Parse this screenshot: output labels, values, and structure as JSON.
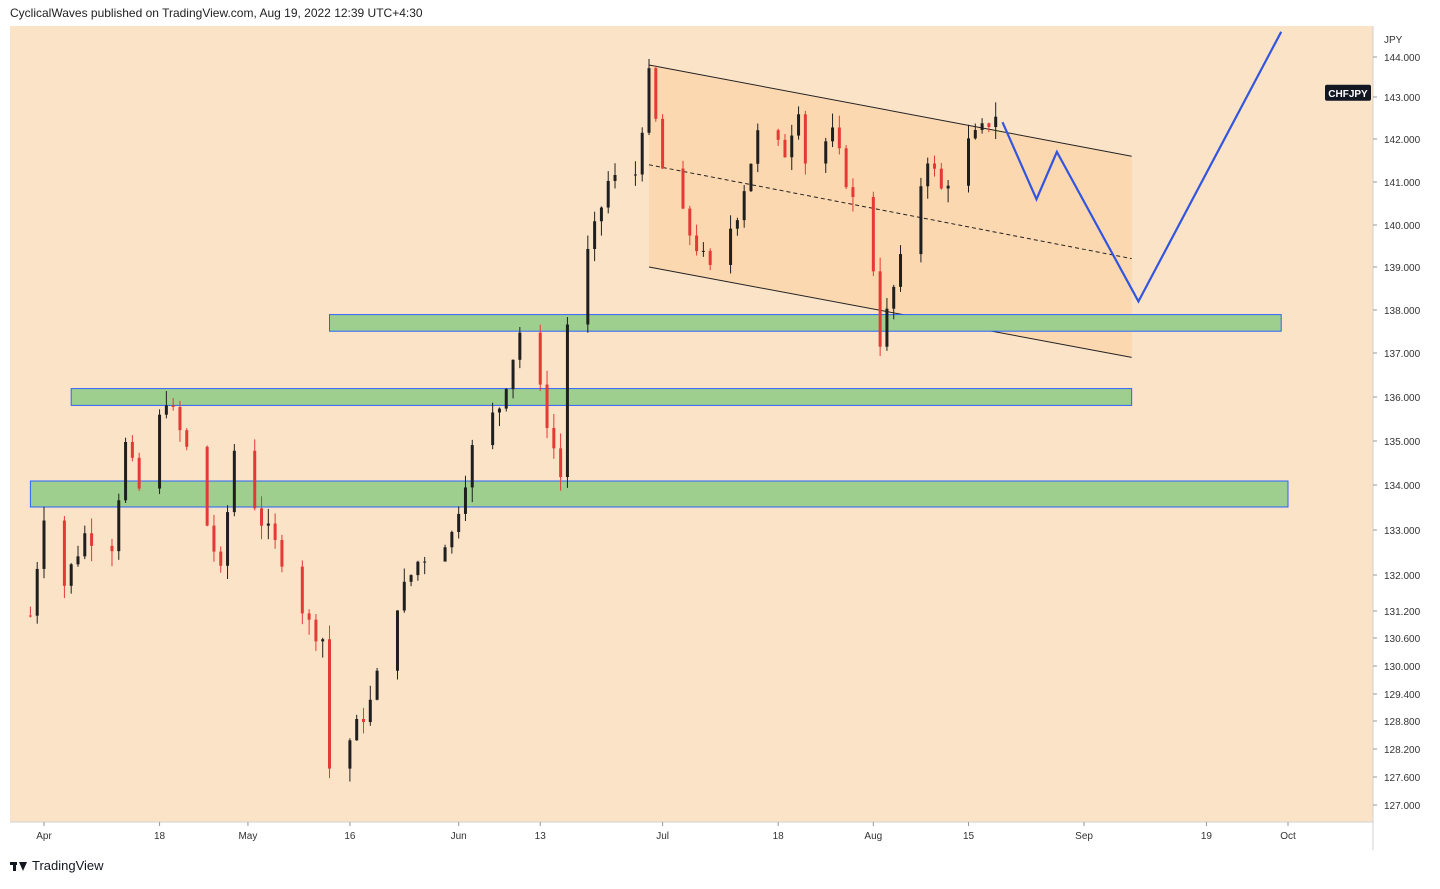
{
  "header": {
    "publisher_text": "CyclicalWaves published on TradingView.com, Aug 19, 2022 12:39 UTC+4:30"
  },
  "footer": {
    "brand": "TradingView",
    "logo_icon": "tradingview-logo-icon"
  },
  "colors": {
    "background": "#fbe3c8",
    "channel_fill": "#fdcf9c",
    "zone_fill": "#9fcf8f",
    "zone_border": "#2962ff",
    "projection": "#3155e0",
    "up_candle": "#1f1f1f",
    "down_candle": "#e53935"
  },
  "chart_data": {
    "type": "candlestick",
    "symbol": "CHFJPY",
    "currency": "JPY",
    "y_axis_labels": [
      "144.000",
      "143.000",
      "142.000",
      "141.000",
      "140.000",
      "139.000",
      "138.000",
      "137.000",
      "136.000",
      "135.000",
      "134.000",
      "133.000",
      "132.000",
      "131.200",
      "130.600",
      "130.000",
      "129.400",
      "128.800",
      "128.200",
      "127.600",
      "127.000"
    ],
    "x_axis_labels": [
      "Apr",
      "18",
      "May",
      "16",
      "Jun",
      "13",
      "Jul",
      "18",
      "Aug",
      "15",
      "Sep",
      "19",
      "Oct"
    ],
    "price_path": [
      [
        "Mar 30",
        131.1
      ],
      [
        "Apr 1",
        133.4
      ],
      [
        "Apr 4",
        131.8
      ],
      [
        "Apr 7",
        132.9
      ],
      [
        "Apr 11",
        132.7
      ],
      [
        "Apr 13",
        134.9
      ],
      [
        "Apr 15",
        133.9
      ],
      [
        "Apr 19",
        136.0
      ],
      [
        "Apr 22",
        134.8
      ],
      [
        "Apr 27",
        132.0
      ],
      [
        "Apr 29",
        134.8
      ],
      [
        "May 3",
        133.2
      ],
      [
        "May 6",
        132.4
      ],
      [
        "May 10",
        130.9
      ],
      [
        "May 12",
        130.6
      ],
      [
        "May 13",
        127.8
      ],
      [
        "May 16",
        128.4
      ],
      [
        "May 19",
        129.2
      ],
      [
        "May 23",
        131.4
      ],
      [
        "May 26",
        132.3
      ],
      [
        "May 31",
        132.9
      ],
      [
        "Jun 3",
        134.8
      ],
      [
        "Jun 7",
        135.8
      ],
      [
        "Jun 10",
        137.5
      ],
      [
        "Jun 13",
        136.1
      ],
      [
        "Jun 16",
        134.2
      ],
      [
        "Jun 17",
        137.7
      ],
      [
        "Jun 20",
        139.3
      ],
      [
        "Jun 23",
        141.0
      ],
      [
        "Jun 27",
        141.2
      ],
      [
        "Jun 29",
        143.5
      ],
      [
        "Jul 1",
        141.3
      ],
      [
        "Jul 5",
        139.8
      ],
      [
        "Jul 8",
        138.9
      ],
      [
        "Jul 12",
        140.3
      ],
      [
        "Jul 15",
        142.1
      ],
      [
        "Jul 19",
        141.7
      ],
      [
        "Jul 21",
        142.8
      ],
      [
        "Jul 22",
        141.5
      ],
      [
        "Jul 26",
        142.1
      ],
      [
        "Aug 1",
        139.0
      ],
      [
        "Aug 2",
        137.3
      ],
      [
        "Aug 5",
        139.1
      ],
      [
        "Aug 9",
        141.6
      ],
      [
        "Aug 11",
        140.8
      ],
      [
        "Aug 15",
        141.9
      ],
      [
        "Aug 17",
        142.2
      ],
      [
        "Aug 19",
        142.6
      ]
    ],
    "channel": {
      "upper": [
        [
          "Jun 29",
          143.8
        ],
        [
          "Sep 8",
          141.6
        ]
      ],
      "lower": [
        [
          "Jun 29",
          139.0
        ],
        [
          "Sep 8",
          136.9
        ]
      ],
      "mid": [
        [
          "Jun 29",
          141.4
        ],
        [
          "Sep 8",
          139.2
        ]
      ]
    },
    "support_zones": [
      {
        "from": "May 13",
        "to": "Sep 30",
        "low": 137.6,
        "high": 137.8
      },
      {
        "from": "Apr 5",
        "to": "Sep 8",
        "low": 135.9,
        "high": 136.1
      },
      {
        "from": "Mar 30",
        "to": "Oct 1",
        "low": 133.6,
        "high": 134.0
      }
    ],
    "projection": [
      [
        "Aug 20",
        142.4
      ],
      [
        "Aug 25",
        140.6
      ],
      [
        "Aug 28",
        141.7
      ],
      [
        "Sep 9",
        138.2
      ],
      [
        "Sep 30",
        144.6
      ]
    ],
    "last_price_label": "CHFJPY"
  }
}
